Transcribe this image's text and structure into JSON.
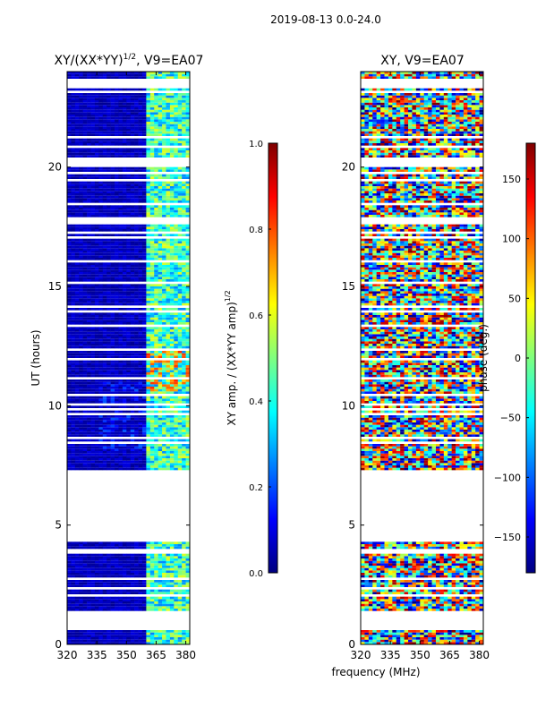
{
  "figure": {
    "suptitle": "2019-08-13 0.0-24.0",
    "shared_xlabel": "frequency (MHz)"
  },
  "colors": {
    "jet_stops": [
      "#00007f",
      "#0000ff",
      "#007fff",
      "#00ffff",
      "#7fff7f",
      "#ffff00",
      "#ff7f00",
      "#ff0000",
      "#7f0000"
    ],
    "gap": "#ffffff"
  },
  "chart_data": [
    {
      "type": "heatmap",
      "title": "XY/(XX*YY)^1/2, V9=EA07",
      "title_main": "XY/(XX*YY)",
      "title_sup": "1/2",
      "title_tail": ", V9=EA07",
      "xlabel": "",
      "ylabel": "UT (hours)",
      "xlim": [
        320,
        382
      ],
      "ylim": [
        0,
        24
      ],
      "xticks": [
        "320",
        "335",
        "350",
        "365",
        "380"
      ],
      "yticks": [
        "0",
        "5",
        "10",
        "15",
        "20"
      ],
      "colorbar": {
        "label": "XY amp. / (XX*YY amp)^1/2",
        "label_main": "XY amp. / (XX*YY amp)",
        "label_sup": "1/2",
        "range": [
          0,
          1
        ],
        "ticks": [
          "0.0",
          "0.2",
          "0.4",
          "0.6",
          "0.8",
          "1.0"
        ]
      },
      "data_gaps_hours": [
        [
          4.3,
          7.3
        ],
        [
          0.7,
          1.4
        ],
        [
          23.4,
          23.55
        ],
        [
          17.55,
          17.9
        ]
      ],
      "value_summary": "mostly low (~0.05) across 320-360 MHz; elevated (0.3-0.7) in 360-382 MHz; peaks ~0.8 near 11-12 UT"
    },
    {
      "type": "heatmap",
      "title": "XY, V9=EA07",
      "xlabel": "",
      "ylabel": "",
      "xlim": [
        320,
        382
      ],
      "ylim": [
        0,
        24
      ],
      "xticks": [
        "320",
        "335",
        "350",
        "365",
        "380"
      ],
      "yticks": [
        "0",
        "5",
        "10",
        "15",
        "20"
      ],
      "colorbar": {
        "label": "phase (deg.)",
        "range": [
          -180,
          180
        ],
        "ticks": [
          "−150",
          "−100",
          "−50",
          "0",
          "50",
          "100",
          "150"
        ]
      },
      "data_gaps_hours": [
        [
          4.3,
          7.3
        ],
        [
          0.7,
          1.4
        ],
        [
          23.4,
          23.55
        ],
        [
          17.55,
          17.9
        ]
      ],
      "value_summary": "phase wraps over full −180..180 range; strong noisy structure at all hours with data"
    }
  ]
}
